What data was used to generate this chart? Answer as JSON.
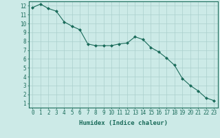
{
  "x": [
    0,
    1,
    2,
    3,
    4,
    5,
    6,
    7,
    8,
    9,
    10,
    11,
    12,
    13,
    14,
    15,
    16,
    17,
    18,
    19,
    20,
    21,
    22,
    23
  ],
  "y": [
    11.8,
    12.2,
    11.7,
    11.4,
    10.2,
    9.7,
    9.3,
    7.7,
    7.5,
    7.5,
    7.5,
    7.7,
    7.8,
    8.5,
    8.2,
    7.3,
    6.8,
    6.1,
    5.3,
    3.8,
    3.0,
    2.4,
    1.6,
    1.3
  ],
  "line_color": "#1a6b5a",
  "marker": "D",
  "marker_size": 2,
  "bg_color": "#cceae7",
  "grid_color": "#aacfcc",
  "tick_color": "#1a6b5a",
  "xlabel": "Humidex (Indice chaleur)",
  "xlim": [
    -0.5,
    23.5
  ],
  "ylim": [
    0.5,
    12.5
  ],
  "xticks": [
    0,
    1,
    2,
    3,
    4,
    5,
    6,
    7,
    8,
    9,
    10,
    11,
    12,
    13,
    14,
    15,
    16,
    17,
    18,
    19,
    20,
    21,
    22,
    23
  ],
  "yticks": [
    1,
    2,
    3,
    4,
    5,
    6,
    7,
    8,
    9,
    10,
    11,
    12
  ],
  "xlabel_fontsize": 6.5,
  "tick_fontsize": 5.5
}
